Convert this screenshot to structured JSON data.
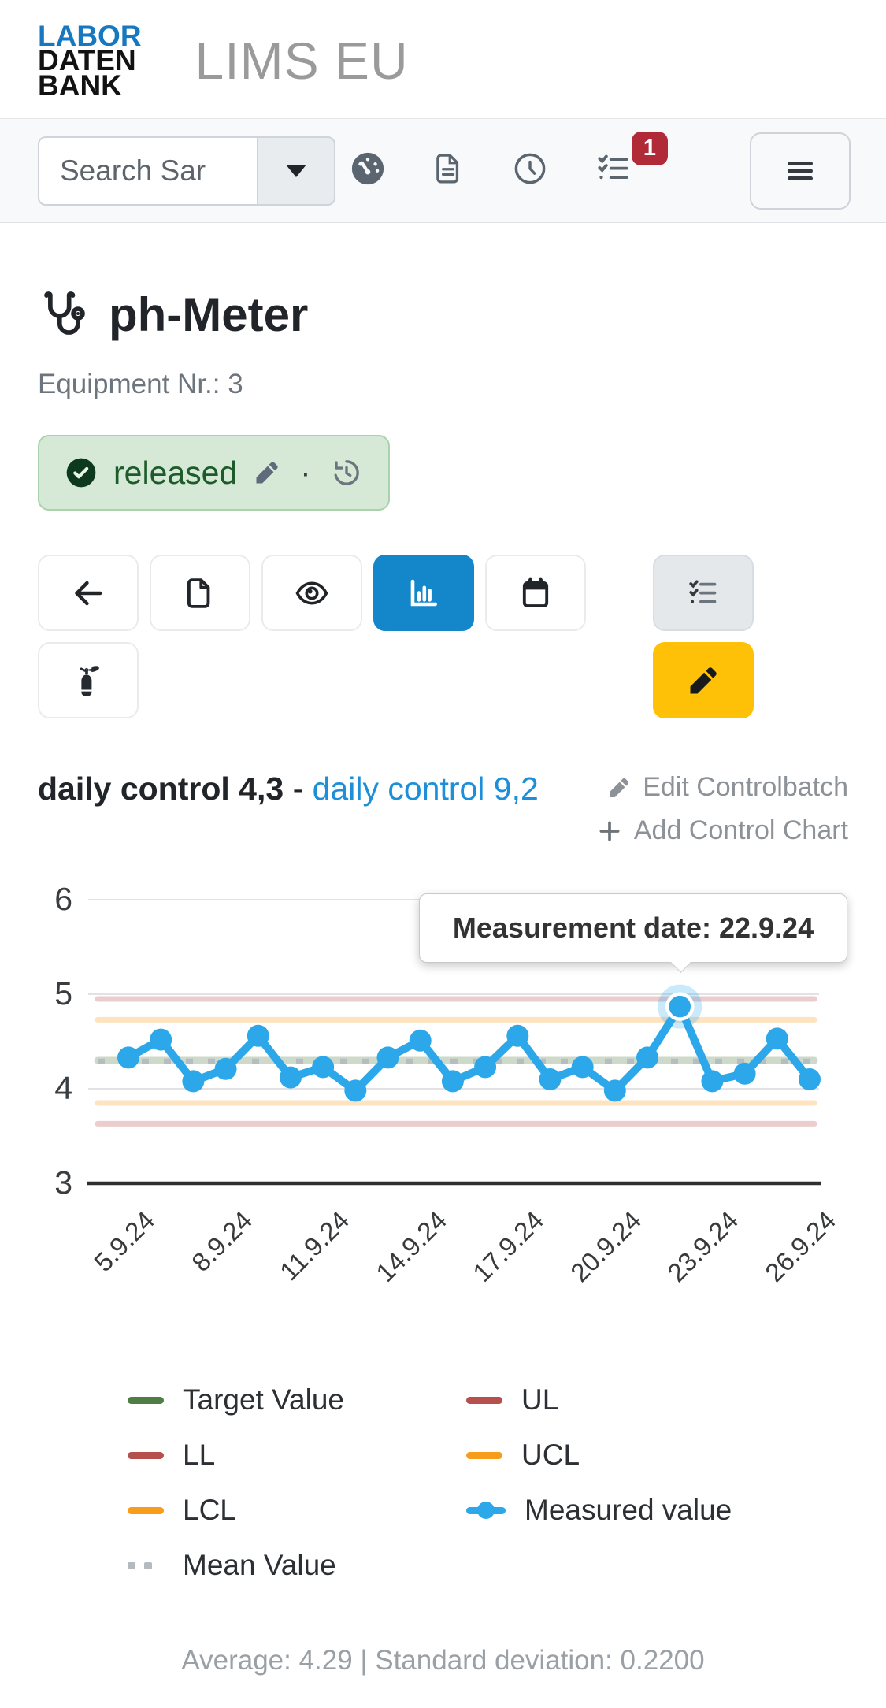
{
  "header": {
    "logo_lines": [
      "LABOR",
      "DATEN",
      "BANK"
    ],
    "app_title": "LIMS EU"
  },
  "toolbar": {
    "search_placeholder": "Search Sar",
    "notification_count": "1",
    "icons": [
      "speedometer",
      "document",
      "clock",
      "task-list",
      "menu"
    ]
  },
  "equipment": {
    "title": "ph-Meter",
    "number_label": "Equipment Nr.: 3",
    "status_label": "released"
  },
  "action_buttons": [
    "back",
    "document",
    "view",
    "control-chart",
    "calendar",
    "tasks",
    "fire-extinguisher",
    "edit"
  ],
  "controlbatch": {
    "active": "daily control 4,3",
    "separator": "-",
    "linked": "daily control 9,2",
    "edit_link": "Edit Controlbatch",
    "add_link": "Add Control Chart"
  },
  "chart_tooltip": {
    "text": "Measurement date: 22.9.24"
  },
  "chart_data": {
    "type": "line",
    "x": [
      "5.9.24",
      "6.9.24",
      "7.9.24",
      "8.9.24",
      "9.9.24",
      "10.9.24",
      "11.9.24",
      "12.9.24",
      "13.9.24",
      "14.9.24",
      "15.9.24",
      "16.9.24",
      "17.9.24",
      "18.9.24",
      "19.9.24",
      "20.9.24",
      "21.9.24",
      "22.9.24",
      "23.9.24",
      "24.9.24",
      "25.9.24",
      "26.9.24"
    ],
    "series": [
      {
        "name": "Measured value",
        "color": "#2ba7ea",
        "values": [
          4.33,
          4.52,
          4.08,
          4.21,
          4.56,
          4.12,
          4.23,
          3.98,
          4.33,
          4.51,
          4.08,
          4.23,
          4.56,
          4.1,
          4.23,
          3.98,
          4.33,
          4.87,
          4.08,
          4.16,
          4.53,
          4.1
        ]
      }
    ],
    "highlight": {
      "index": 17,
      "date": "22.9.24"
    },
    "reference_lines": [
      {
        "name": "UL",
        "value": 4.95,
        "color": "#b5504c",
        "dashed": false
      },
      {
        "name": "UCL",
        "value": 4.73,
        "color": "#f89c1c",
        "dashed": false
      },
      {
        "name": "Target Value",
        "value": 4.3,
        "color": "#4e7d45",
        "dashed": false
      },
      {
        "name": "LCL",
        "value": 3.85,
        "color": "#f89c1c",
        "dashed": false
      },
      {
        "name": "LL",
        "value": 3.63,
        "color": "#b5504c",
        "dashed": false
      },
      {
        "name": "Mean Value",
        "value": 4.29,
        "color": "#b4bac0",
        "dashed": true
      }
    ],
    "ylim": [
      3,
      6
    ],
    "yticks": [
      6,
      5,
      4,
      3
    ],
    "xtick_indices": [
      0,
      3,
      6,
      9,
      12,
      15,
      18,
      21
    ],
    "xtick_labels": [
      "5.9.24",
      "8.9.24",
      "11.9.24",
      "14.9.24",
      "17.9.24",
      "20.9.24",
      "23.9.24",
      "26.9.24"
    ],
    "grid": true,
    "legend_position": "bottom",
    "legend": [
      {
        "label": "Target Value",
        "color": "#4e7d45",
        "style": "solid"
      },
      {
        "label": "UL",
        "color": "#b5504c",
        "style": "solid"
      },
      {
        "label": "LL",
        "color": "#b5504c",
        "style": "solid"
      },
      {
        "label": "UCL",
        "color": "#f89c1c",
        "style": "solid"
      },
      {
        "label": "LCL",
        "color": "#f89c1c",
        "style": "solid"
      },
      {
        "label": "Measured value",
        "color": "#2ba7ea",
        "style": "line-dot"
      },
      {
        "label": "Mean Value",
        "color": "#b4bac0",
        "style": "dashed"
      }
    ]
  },
  "footer": {
    "stats": "Average: 4.29 | Standard deviation: 0.2200"
  },
  "colors": {
    "accent_blue": "#1487ca",
    "link_blue": "#1d8fd8",
    "warning_yellow": "#ffc107",
    "badge_red": "#b02a37",
    "status_green_bg": "#d5e9d6",
    "status_green_text": "#1d5b2a",
    "measured_blue": "#2ba7ea"
  }
}
